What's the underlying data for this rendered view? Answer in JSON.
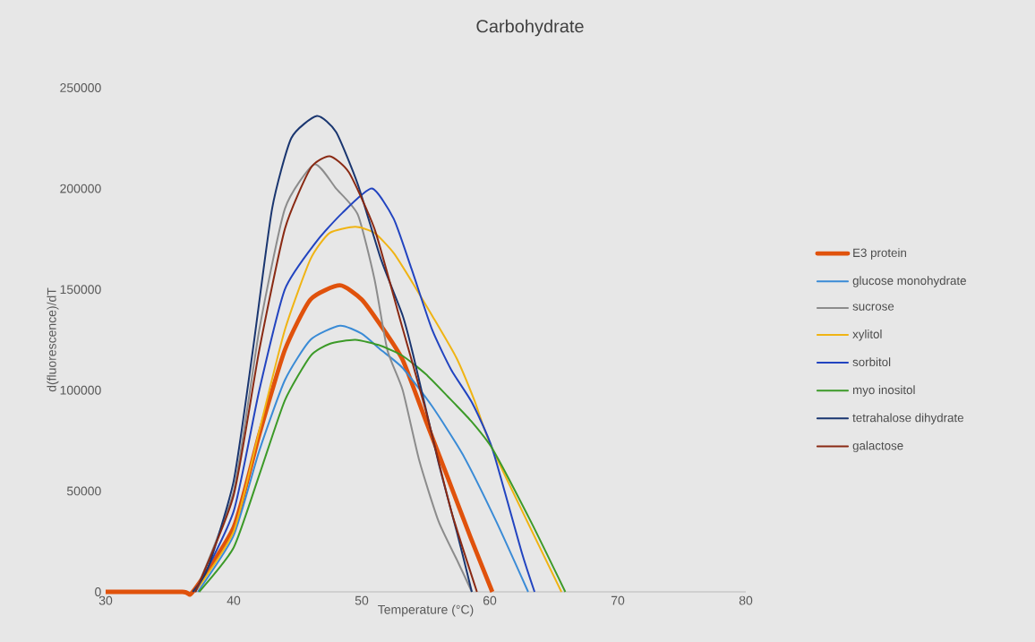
{
  "chart_data": {
    "type": "line",
    "title": "Carbohydrate",
    "xlabel": "Temperature (°C)",
    "ylabel": "d(fluorescence)/dT",
    "xlim": [
      30,
      80
    ],
    "xticks": [
      30,
      40,
      50,
      60,
      70,
      80
    ],
    "ylim": [
      0,
      250000
    ],
    "yticks": [
      0,
      50000,
      100000,
      150000,
      200000,
      250000
    ],
    "grid": false,
    "legend": "right",
    "marker": "none",
    "line_style": "solid",
    "series": [
      {
        "name": "E3 protein",
        "color": "#e0520c",
        "x": [
          30,
          36,
          36.8,
          40,
          42,
          44,
          46,
          48.3,
          50,
          51.5,
          53.2,
          55,
          56.7,
          58.5,
          60.2
        ],
        "values": [
          0,
          0,
          0,
          32000,
          78000,
          120000,
          145000,
          152000,
          145000,
          132000,
          115000,
          85000,
          57000,
          27000,
          0
        ]
      },
      {
        "name": "glucose monohydrate",
        "color": "#3a8bd6",
        "x": [
          37.2,
          40,
          42,
          44,
          46,
          48.3,
          50,
          51.5,
          53.2,
          55.5,
          57.9,
          60.5,
          63
        ],
        "values": [
          0,
          28000,
          70000,
          105000,
          125000,
          132000,
          128000,
          120000,
          111000,
          92000,
          68000,
          35000,
          0
        ]
      },
      {
        "name": "sucrose",
        "color": "#8c8c8c",
        "x": [
          37,
          40,
          42,
          44,
          46.3,
          48,
          49.7,
          51,
          52,
          53.2,
          54.5,
          56,
          57.5,
          58.6
        ],
        "values": [
          0,
          50000,
          130000,
          190000,
          212000,
          200000,
          187000,
          155000,
          120000,
          100000,
          65000,
          35000,
          15000,
          0
        ]
      },
      {
        "name": "xylitol",
        "color": "#f0b414",
        "x": [
          37,
          40,
          42,
          44,
          46,
          47.5,
          49.5,
          51,
          52.5,
          54,
          55.5,
          57.4,
          58.8,
          60.2,
          65.6
        ],
        "values": [
          0,
          30000,
          80000,
          130000,
          165000,
          178000,
          181000,
          178000,
          168000,
          153000,
          137000,
          116000,
          95000,
          71000,
          0
        ]
      },
      {
        "name": "sorbitol",
        "color": "#2244c0",
        "x": [
          37,
          40,
          42,
          44,
          46.5,
          48.5,
          50.8,
          52.5,
          53.9,
          55.5,
          57,
          58.6,
          60.2,
          62.5,
          63.5
        ],
        "values": [
          0,
          40000,
          100000,
          150000,
          174000,
          188000,
          200000,
          185000,
          160000,
          130000,
          110000,
          94000,
          71000,
          19500,
          0
        ]
      },
      {
        "name": "myo inositol",
        "color": "#3c9a28",
        "x": [
          37.3,
          40,
          42,
          44,
          46,
          47.5,
          49.5,
          51.5,
          53.2,
          55,
          56.7,
          58.5,
          60.2,
          63.2,
          65.9
        ],
        "values": [
          0,
          22000,
          58000,
          95000,
          117000,
          123000,
          125000,
          122000,
          117000,
          108000,
          97000,
          85000,
          71000,
          35000,
          0
        ]
      },
      {
        "name": "tetrahalose dihydrate",
        "color": "#1a3670",
        "x": [
          36.8,
          38,
          40,
          41.5,
          43,
          44.5,
          46.5,
          48,
          49.7,
          51.5,
          53.2,
          54,
          56,
          57.5,
          58.6
        ],
        "values": [
          0,
          12000,
          55000,
          120000,
          190000,
          225000,
          236000,
          228000,
          202000,
          165000,
          137000,
          118000,
          64000,
          28000,
          0
        ]
      },
      {
        "name": "galactose",
        "color": "#8a2a14",
        "x": [
          37,
          40,
          42,
          44,
          46,
          47.5,
          49,
          51,
          53,
          55,
          57,
          59
        ],
        "values": [
          0,
          48000,
          120000,
          180000,
          210000,
          216000,
          208000,
          180000,
          135000,
          90000,
          40000,
          0
        ]
      }
    ]
  }
}
